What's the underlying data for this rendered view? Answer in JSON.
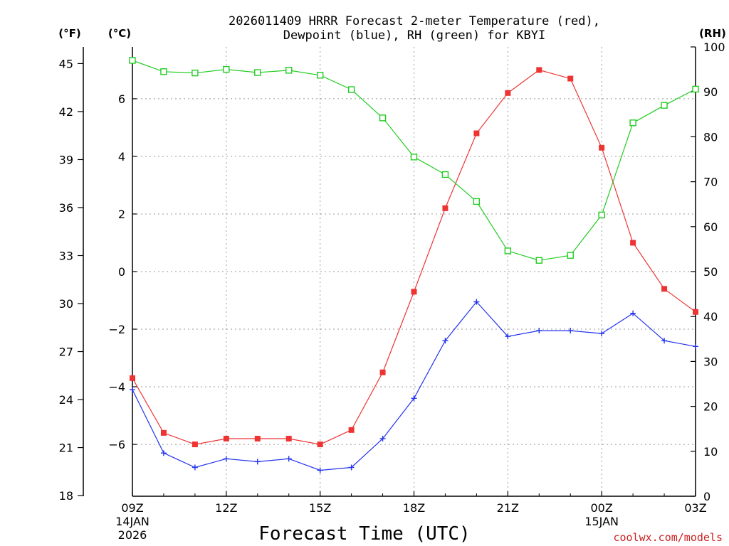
{
  "chart_data": {
    "type": "line",
    "title_line1": "2026011409 HRRR Forecast 2-meter Temperature (red),",
    "title_line2": "Dewpoint (blue), RH (green) for KBYI",
    "xlabel": "Forecast Time (UTC)",
    "credit": "coolwx.com/models",
    "units": {
      "left_outer": "(°F)",
      "left_inner": "(°C)",
      "right": "(RH)"
    },
    "x_hours": [
      0,
      1,
      2,
      3,
      4,
      5,
      6,
      7,
      8,
      9,
      10,
      11,
      12,
      13,
      14,
      15,
      16,
      17,
      18
    ],
    "x_ticks": [
      {
        "hour": 0,
        "label": "09Z",
        "sub1": "14JAN",
        "sub2": "2026"
      },
      {
        "hour": 3,
        "label": "12Z",
        "sub1": "",
        "sub2": ""
      },
      {
        "hour": 6,
        "label": "15Z",
        "sub1": "",
        "sub2": ""
      },
      {
        "hour": 9,
        "label": "18Z",
        "sub1": "",
        "sub2": ""
      },
      {
        "hour": 12,
        "label": "21Z",
        "sub1": "",
        "sub2": ""
      },
      {
        "hour": 15,
        "label": "00Z",
        "sub1": "15JAN",
        "sub2": ""
      },
      {
        "hour": 18,
        "label": "03Z",
        "sub1": "",
        "sub2": ""
      }
    ],
    "celsius_axis": {
      "range": [
        -7.8,
        7.8
      ],
      "ticks": [
        -6,
        -4,
        -2,
        0,
        2,
        4,
        6
      ],
      "labels": [
        "−6",
        "−4",
        "−2",
        "0",
        "2",
        "4",
        "6"
      ]
    },
    "fahrenheit_ticks": [
      "18",
      "21",
      "24",
      "27",
      "30",
      "33",
      "36",
      "39",
      "42",
      "45"
    ],
    "fahrenheit_values": [
      18,
      21,
      24,
      27,
      30,
      33,
      36,
      39,
      42,
      45
    ],
    "rh_axis": {
      "range": [
        0,
        100
      ],
      "ticks": [
        0,
        10,
        20,
        30,
        40,
        50,
        60,
        70,
        80,
        90,
        100
      ],
      "labels": [
        "0",
        "10",
        "20",
        "30",
        "40",
        "50",
        "60",
        "70",
        "80",
        "90",
        "100"
      ]
    },
    "series": [
      {
        "name": "Temperature",
        "axis": "celsius",
        "color": "#ee3333",
        "marker": "filled-square",
        "values": [
          -3.7,
          -5.6,
          -6.0,
          -5.8,
          -5.8,
          -5.8,
          -6.0,
          -5.5,
          -3.5,
          -0.7,
          2.2,
          4.8,
          6.2,
          7.0,
          6.7,
          4.3,
          1.0,
          -0.6,
          -1.4
        ]
      },
      {
        "name": "Dewpoint",
        "axis": "celsius",
        "color": "#2233ee",
        "marker": "plus",
        "values": [
          -4.1,
          -6.3,
          -6.8,
          -6.5,
          -6.6,
          -6.5,
          -6.9,
          -6.8,
          -5.8,
          -4.4,
          -2.4,
          -1.05,
          -2.25,
          -2.05,
          -2.05,
          -2.15,
          -1.45,
          -2.4,
          -2.6
        ]
      },
      {
        "name": "Relative Humidity",
        "axis": "rh",
        "color": "#22cc22",
        "marker": "open-square",
        "values": [
          97,
          94.5,
          94.2,
          95,
          94.3,
          94.8,
          93.7,
          90.5,
          84.2,
          75.5,
          71.6,
          65.6,
          54.6,
          52.5,
          53.6,
          62.6,
          83.1,
          87,
          90.6
        ]
      }
    ]
  }
}
